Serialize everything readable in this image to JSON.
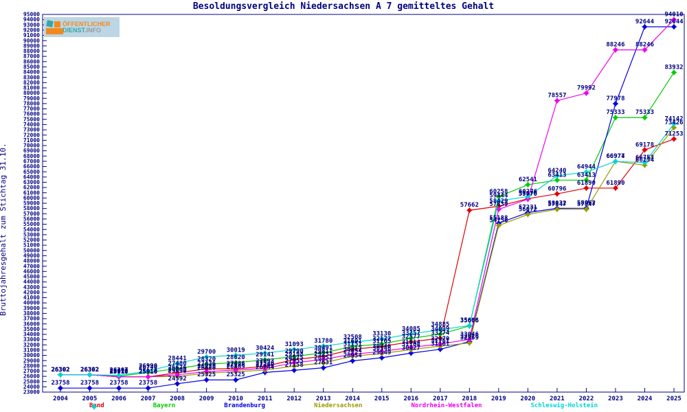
{
  "logo": {
    "line1": "ÖFFENTLICHER",
    "line2_teal": "DIENST.",
    "line2_gray": "INFO",
    "orange": "#f18a1e",
    "teal": "#3aa6a0"
  },
  "chart_data": {
    "type": "line",
    "title": "Besoldungsvergleich Niedersachsen A 7 gemitteltes Gehalt",
    "xlabel": "",
    "ylabel": "Bruttojahresgehalt zum Stichtag 31.10.",
    "ylim": [
      23000,
      95000
    ],
    "ytick_step": 1000,
    "grid": false,
    "legend_position": "bottom",
    "axis_color": "#000080",
    "label_color": "#000080",
    "categories": [
      "2004",
      "2005",
      "2006",
      "2007",
      "2008",
      "2009",
      "2010",
      "2011",
      "2012",
      "2013",
      "2014",
      "2015",
      "2016",
      "2017",
      "2018",
      "2019",
      "2020",
      "2021",
      "2022",
      "2023",
      "2024",
      "2025"
    ],
    "series": [
      {
        "name": "Bund",
        "color": "#e00000",
        "values": [
          26302,
          26302,
          25916,
          25916,
          26676,
          27436,
          27436,
          27893,
          29198,
          29811,
          31151,
          31705,
          32577,
          33274,
          57662,
          58429,
          59878,
          60796,
          61890,
          61890,
          69178,
          71253
        ]
      },
      {
        "name": "Bayern",
        "color": "#00cc00",
        "values": [
          26302,
          26302,
          26010,
          26740,
          27480,
          28320,
          28620,
          29141,
          29790,
          30491,
          31691,
          32172,
          33257,
          34039,
          35606,
          60258,
          62541,
          63413,
          63413,
          75333,
          75333,
          83932
        ]
      },
      {
        "name": "Brandenburg",
        "color": "#0000e0",
        "values": [
          23758,
          23758,
          23758,
          23758,
          24592,
          25325,
          25325,
          26744,
          27158,
          27631,
          28954,
          29549,
          30427,
          31161,
          32626,
          55188,
          57231,
          58032,
          58062,
          77978,
          92644,
          92644
        ]
      },
      {
        "name": "Niedersachsen",
        "color": "#999900",
        "values": [
          26302,
          26302,
          25910,
          25910,
          25990,
          26620,
          26889,
          27200,
          27955,
          28551,
          29854,
          30346,
          31104,
          31761,
          32369,
          54756,
          56872,
          57847,
          57847,
          66977,
          66254,
          73426
        ]
      },
      {
        "name": "Nordrhein-Westfalen",
        "color": "#ee00ee",
        "values": [
          26302,
          26302,
          25910,
          25910,
          26300,
          26920,
          27188,
          27526,
          28575,
          29231,
          30217,
          30746,
          31514,
          32170,
          33046,
          57839,
          59770,
          78557,
          79992,
          88246,
          88246,
          94010
        ]
      },
      {
        "name": "Schleswig-Holstein",
        "color": "#00d5d5",
        "values": [
          26302,
          26302,
          26207,
          26990,
          28441,
          29700,
          30019,
          30424,
          31093,
          31780,
          32508,
          33130,
          34085,
          34885,
          35686,
          59444,
          60276,
          64240,
          64944,
          66974,
          66753,
          74142
        ]
      }
    ]
  }
}
